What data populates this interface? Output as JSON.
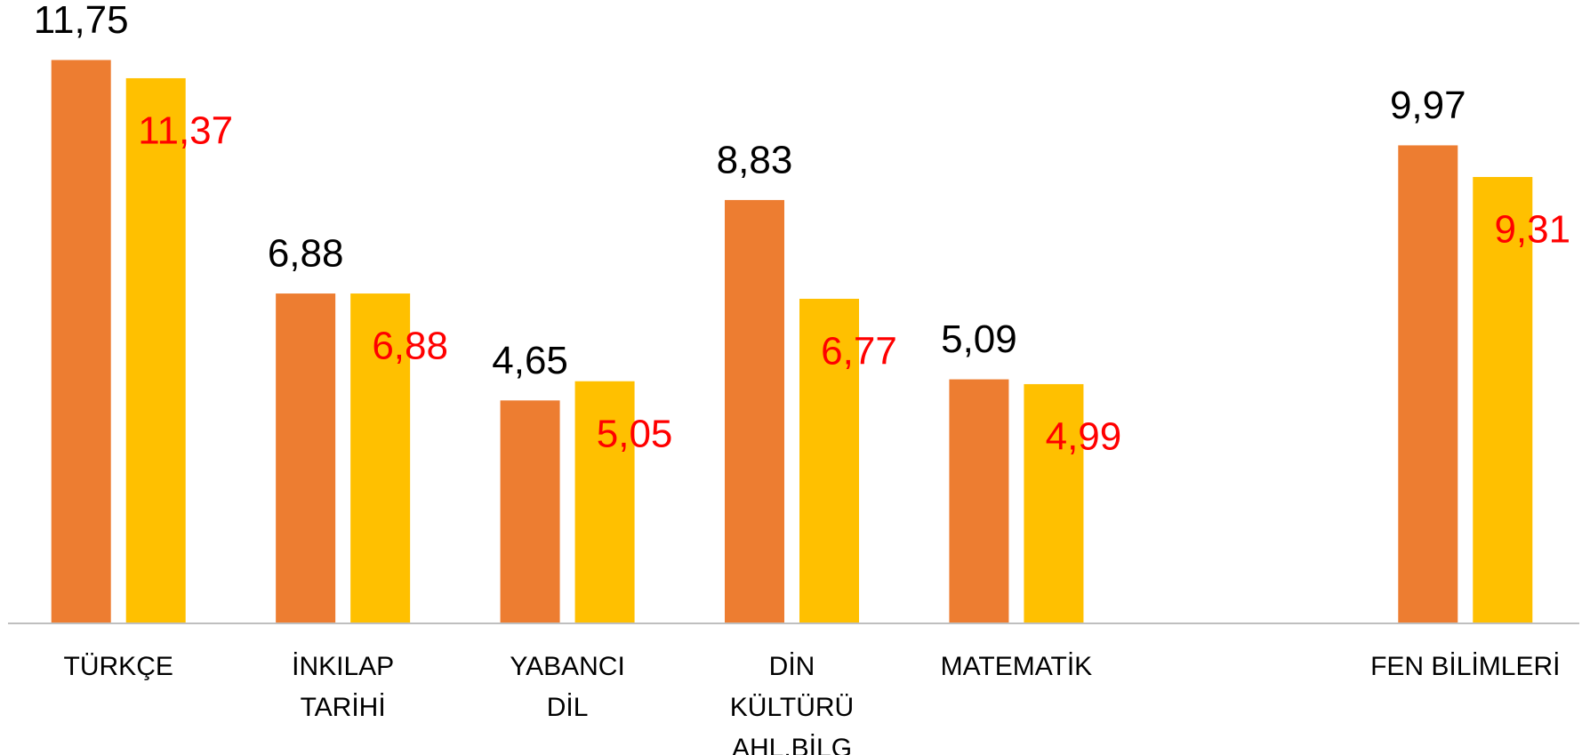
{
  "chart_data": {
    "type": "bar",
    "categories": [
      "TÜRKÇE",
      "İNKILAP\nTARİHİ",
      "YABANCI\nDİL",
      "DİN\nKÜLTÜRÜ\nAHL.BİLG",
      "MATEMATİK",
      null,
      "FEN BİLİMLERİ"
    ],
    "series": [
      {
        "color": "#ED7D31",
        "label_color": "#000000",
        "values": [
          11.75,
          6.88,
          4.65,
          8.83,
          5.09,
          null,
          9.97
        ],
        "value_labels": [
          "11,75",
          "6,88",
          "4,65",
          "8,83",
          "5,09",
          null,
          "9,97"
        ]
      },
      {
        "color": "#FFC000",
        "label_color": "#FF0000",
        "values": [
          11.37,
          6.88,
          5.05,
          6.77,
          4.99,
          null,
          9.31
        ],
        "value_labels": [
          "11,37",
          "6,88",
          "5,05",
          "6,77",
          "4,99",
          null,
          "9,31"
        ]
      }
    ],
    "ylim": [
      0,
      12
    ]
  }
}
